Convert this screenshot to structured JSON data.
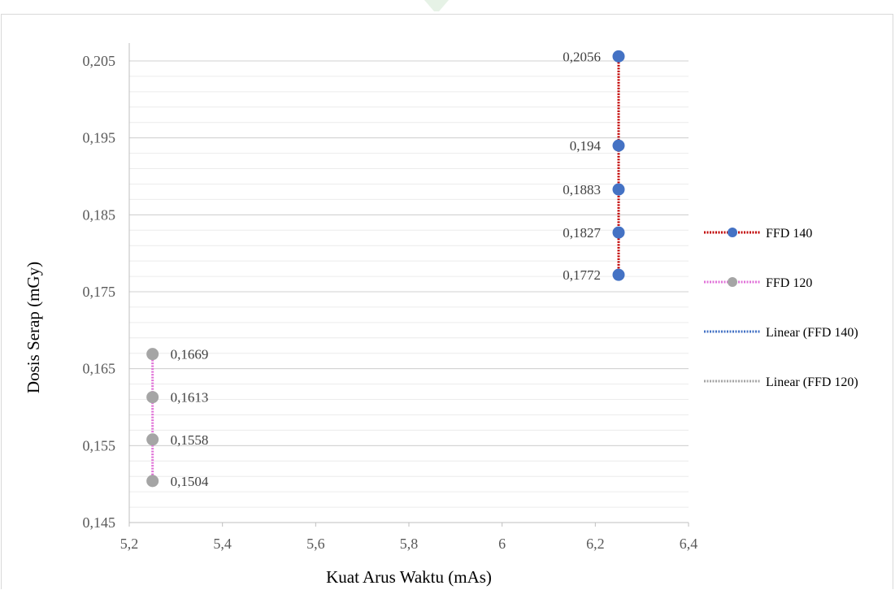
{
  "chart_data": {
    "type": "scatter",
    "title": "",
    "xlabel": "Kuat Arus Waktu (mAs)",
    "ylabel": "Dosis Serap (mGy)",
    "xlim": [
      5.2,
      6.4
    ],
    "ylim": [
      0.145,
      0.205
    ],
    "x_ticks": [
      "5,2",
      "5,4",
      "5,6",
      "5,8",
      "6",
      "6,2",
      "6,4"
    ],
    "y_ticks": [
      "0,145",
      "0,155",
      "0,165",
      "0,175",
      "0,185",
      "0,195",
      "0,205"
    ],
    "grid": true,
    "legend_position": "right",
    "series": [
      {
        "name": "FFD 140",
        "marker_color": "#4472c4",
        "line_color": "#c00000",
        "line_style": "dotted",
        "points": [
          {
            "x": 6.25,
            "y": 0.2056,
            "label": "0,2056"
          },
          {
            "x": 6.25,
            "y": 0.194,
            "label": "0,194"
          },
          {
            "x": 6.25,
            "y": 0.1883,
            "label": "0,1883"
          },
          {
            "x": 6.25,
            "y": 0.1827,
            "label": "0,1827"
          },
          {
            "x": 6.25,
            "y": 0.1772,
            "label": "0,1772"
          }
        ]
      },
      {
        "name": "FFD 120",
        "marker_color": "#a5a5a5",
        "line_color": "#e072d8",
        "line_style": "dotted",
        "points": [
          {
            "x": 5.25,
            "y": 0.1669,
            "label": "0,1669"
          },
          {
            "x": 5.25,
            "y": 0.1613,
            "label": "0,1613"
          },
          {
            "x": 5.25,
            "y": 0.1558,
            "label": "0,1558"
          },
          {
            "x": 5.25,
            "y": 0.1504,
            "label": "0,1504"
          }
        ]
      }
    ],
    "legend": [
      {
        "label": "FFD 140",
        "line_color": "#c00000",
        "marker_color": "#4472c4",
        "marker": true
      },
      {
        "label": "FFD 120",
        "line_color": "#e072d8",
        "marker_color": "#a5a5a5",
        "marker": true
      },
      {
        "label": "Linear (FFD 140)",
        "line_color": "#4472c4",
        "marker": false
      },
      {
        "label": "Linear (FFD 120)",
        "line_color": "#a5a5a5",
        "marker": false
      }
    ]
  }
}
